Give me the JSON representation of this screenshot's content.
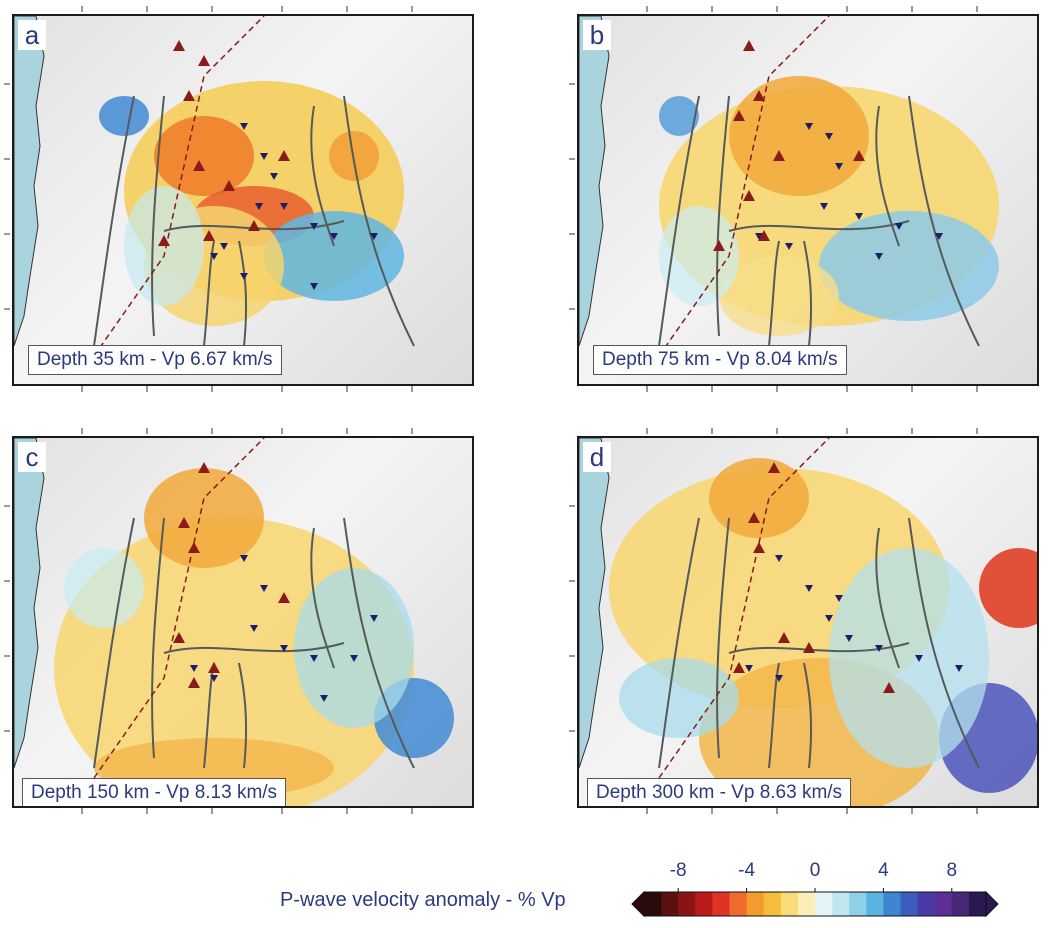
{
  "panels": [
    {
      "letter": "a",
      "label": "Depth 35 km - Vp 6.67 km/s"
    },
    {
      "letter": "b",
      "label": "Depth 75 km - Vp 8.04 km/s"
    },
    {
      "letter": "c",
      "label": "Depth 150 km - Vp 8.13 km/s"
    },
    {
      "letter": "d",
      "label": "Depth 300 km - Vp 8.63 km/s"
    }
  ],
  "colorbar": {
    "title": "P-wave velocity anomaly - % Vp",
    "tick_labels": [
      "-8",
      "-4",
      "0",
      "4",
      "8"
    ],
    "tick_values": [
      -8,
      -4,
      0,
      4,
      8
    ],
    "range": [
      -10,
      10
    ],
    "colors": [
      "#2a0a0a",
      "#5c1010",
      "#8a1414",
      "#b81c1c",
      "#e03323",
      "#ef6a2c",
      "#f59a2e",
      "#f6bd3a",
      "#f9dc7a",
      "#fbeeb8",
      "#e4f4f6",
      "#bfe6ef",
      "#8fd0e6",
      "#5bb3e0",
      "#3f86d2",
      "#3d5cc0",
      "#4a3aa7",
      "#5b2f95",
      "#4a2878",
      "#2a1850"
    ]
  },
  "map_colors": {
    "ocean": "#a9d3dd",
    "volcano": "#8b1a1a",
    "station": "#1d1d6b",
    "fault": "#555a5a",
    "trench": "#8b1a1a"
  }
}
